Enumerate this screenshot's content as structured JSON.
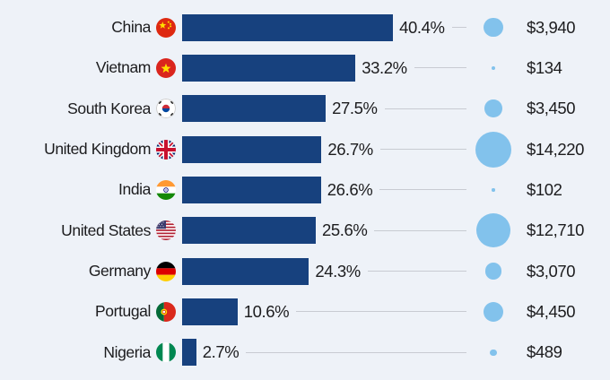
{
  "chart_data": {
    "type": "bar",
    "orientation": "horizontal",
    "title": "",
    "legend": false,
    "categories": [
      "China",
      "Vietnam",
      "South Korea",
      "United Kingdom",
      "India",
      "United States",
      "Germany",
      "Portugal",
      "Nigeria"
    ],
    "series": [
      {
        "name": "share_percent",
        "values": [
          40.4,
          33.2,
          27.5,
          26.7,
          26.6,
          25.6,
          24.3,
          10.6,
          2.7
        ]
      },
      {
        "name": "value_usd",
        "values": [
          3940,
          134,
          3450,
          14220,
          102,
          12710,
          3070,
          4450,
          489
        ]
      }
    ],
    "xlim": [
      0,
      41
    ],
    "grid": false,
    "bubble_encoding": "area proportional to value_usd",
    "colors": {
      "bar": "#17417e",
      "bubble": "#82c2ec",
      "connector": "#c8cbd2",
      "background": "#eef2f8",
      "text": "#1c1c1e"
    }
  },
  "rows": [
    {
      "country": "China",
      "flag": "china-flag-icon",
      "pct": 40.4,
      "pct_label": "40.4%",
      "value": 3940,
      "value_label": "$3,940"
    },
    {
      "country": "Vietnam",
      "flag": "vietnam-flag-icon",
      "pct": 33.2,
      "pct_label": "33.2%",
      "value": 134,
      "value_label": "$134"
    },
    {
      "country": "South Korea",
      "flag": "south-korea-flag-icon",
      "pct": 27.5,
      "pct_label": "27.5%",
      "value": 3450,
      "value_label": "$3,450"
    },
    {
      "country": "United Kingdom",
      "flag": "united-kingdom-flag-icon",
      "pct": 26.7,
      "pct_label": "26.7%",
      "value": 14220,
      "value_label": "$14,220"
    },
    {
      "country": "India",
      "flag": "india-flag-icon",
      "pct": 26.6,
      "pct_label": "26.6%",
      "value": 102,
      "value_label": "$102"
    },
    {
      "country": "United States",
      "flag": "united-states-flag-icon",
      "pct": 25.6,
      "pct_label": "25.6%",
      "value": 12710,
      "value_label": "$12,710"
    },
    {
      "country": "Germany",
      "flag": "germany-flag-icon",
      "pct": 24.3,
      "pct_label": "24.3%",
      "value": 3070,
      "value_label": "$3,070"
    },
    {
      "country": "Portugal",
      "flag": "portugal-flag-icon",
      "pct": 10.6,
      "pct_label": "10.6%",
      "value": 4450,
      "value_label": "$4,450"
    },
    {
      "country": "Nigeria",
      "flag": "nigeria-flag-icon",
      "pct": 2.7,
      "pct_label": "2.7%",
      "value": 489,
      "value_label": "$489"
    }
  ]
}
